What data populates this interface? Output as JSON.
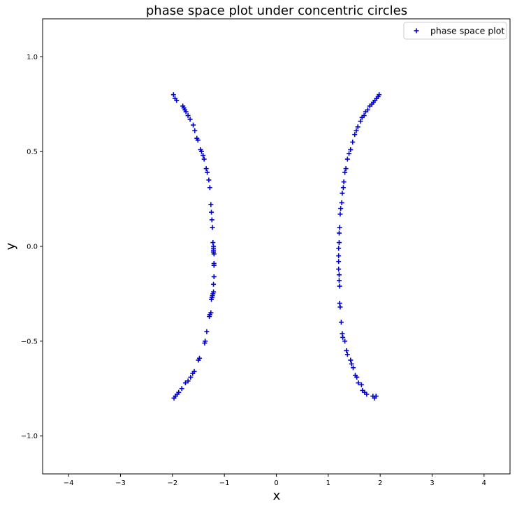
{
  "chart_data": {
    "type": "scatter",
    "title": "phase space plot under concentric circles",
    "xlabel": "x",
    "ylabel": "y",
    "xlim": [
      -4.5,
      4.5
    ],
    "ylim": [
      -1.2,
      1.2
    ],
    "xticks": [
      "−4",
      "−3",
      "−2",
      "−1",
      "0",
      "1",
      "2",
      "3",
      "4"
    ],
    "xtick_values": [
      -4,
      -3,
      -2,
      -1,
      0,
      1,
      2,
      3,
      4
    ],
    "yticks": [
      "−1.0",
      "−0.5",
      "0.0",
      "0.5",
      "1.0"
    ],
    "ytick_values": [
      -1.0,
      -0.5,
      0.0,
      0.5,
      1.0
    ],
    "grid": false,
    "legend": "top-right",
    "marker": "+",
    "color": "#0000cc",
    "series": [
      {
        "name": "phase space plot",
        "x": [
          -1.98,
          -1.95,
          -1.92,
          -1.8,
          -1.78,
          -1.76,
          -1.74,
          -1.7,
          -1.66,
          -1.6,
          -1.57,
          -1.53,
          -1.51,
          -1.46,
          -1.44,
          -1.41,
          -1.39,
          -1.35,
          -1.33,
          -1.3,
          -1.28,
          -1.26,
          -1.25,
          -1.24,
          -1.23,
          -1.22,
          -1.21,
          -1.21,
          -1.21,
          -1.21,
          -1.2,
          -1.2,
          -1.2,
          -1.2,
          -1.21,
          -1.21,
          -1.22,
          -1.23,
          -1.24,
          -1.25,
          -1.26,
          -1.28,
          -1.29,
          -1.34,
          -1.37,
          -1.38,
          -1.48,
          -1.5,
          -1.58,
          -1.61,
          -1.65,
          -1.7,
          -1.75,
          -1.82,
          -1.88,
          -1.91,
          -1.94,
          -1.97,
          1.98,
          1.96,
          1.93,
          1.9,
          1.87,
          1.84,
          1.8,
          1.76,
          1.72,
          1.69,
          1.65,
          1.62,
          1.57,
          1.54,
          1.51,
          1.47,
          1.43,
          1.4,
          1.37,
          1.34,
          1.32,
          1.3,
          1.29,
          1.27,
          1.26,
          1.24,
          1.23,
          1.22,
          1.21,
          1.21,
          1.2,
          1.2,
          1.2,
          1.2,
          1.21,
          1.21,
          1.22,
          1.22,
          1.23,
          1.25,
          1.27,
          1.28,
          1.32,
          1.35,
          1.37,
          1.43,
          1.45,
          1.48,
          1.52,
          1.55,
          1.58,
          1.64,
          1.66,
          1.7,
          1.74,
          1.86,
          1.89,
          1.92
        ],
        "y": [
          0.8,
          0.78,
          0.77,
          0.74,
          0.73,
          0.72,
          0.71,
          0.69,
          0.67,
          0.64,
          0.61,
          0.57,
          0.56,
          0.51,
          0.5,
          0.48,
          0.46,
          0.41,
          0.39,
          0.35,
          0.31,
          0.22,
          0.18,
          0.14,
          0.1,
          0.02,
          0.0,
          -0.01,
          -0.02,
          -0.03,
          -0.04,
          -0.09,
          -0.1,
          -0.16,
          -0.2,
          -0.24,
          -0.25,
          -0.26,
          -0.27,
          -0.28,
          -0.35,
          -0.36,
          -0.37,
          -0.45,
          -0.5,
          -0.51,
          -0.59,
          -0.6,
          -0.66,
          -0.67,
          -0.69,
          -0.71,
          -0.72,
          -0.75,
          -0.77,
          -0.78,
          -0.79,
          -0.8,
          0.8,
          0.79,
          0.78,
          0.77,
          0.76,
          0.75,
          0.74,
          0.72,
          0.71,
          0.69,
          0.68,
          0.66,
          0.63,
          0.61,
          0.59,
          0.55,
          0.51,
          0.49,
          0.46,
          0.41,
          0.39,
          0.34,
          0.31,
          0.28,
          0.23,
          0.2,
          0.17,
          0.1,
          0.07,
          0.02,
          -0.01,
          -0.05,
          -0.08,
          -0.12,
          -0.15,
          -0.18,
          -0.21,
          -0.3,
          -0.32,
          -0.4,
          -0.46,
          -0.48,
          -0.5,
          -0.55,
          -0.57,
          -0.6,
          -0.62,
          -0.64,
          -0.68,
          -0.69,
          -0.72,
          -0.73,
          -0.76,
          -0.77,
          -0.78,
          -0.79,
          -0.8,
          -0.79
        ]
      }
    ]
  }
}
